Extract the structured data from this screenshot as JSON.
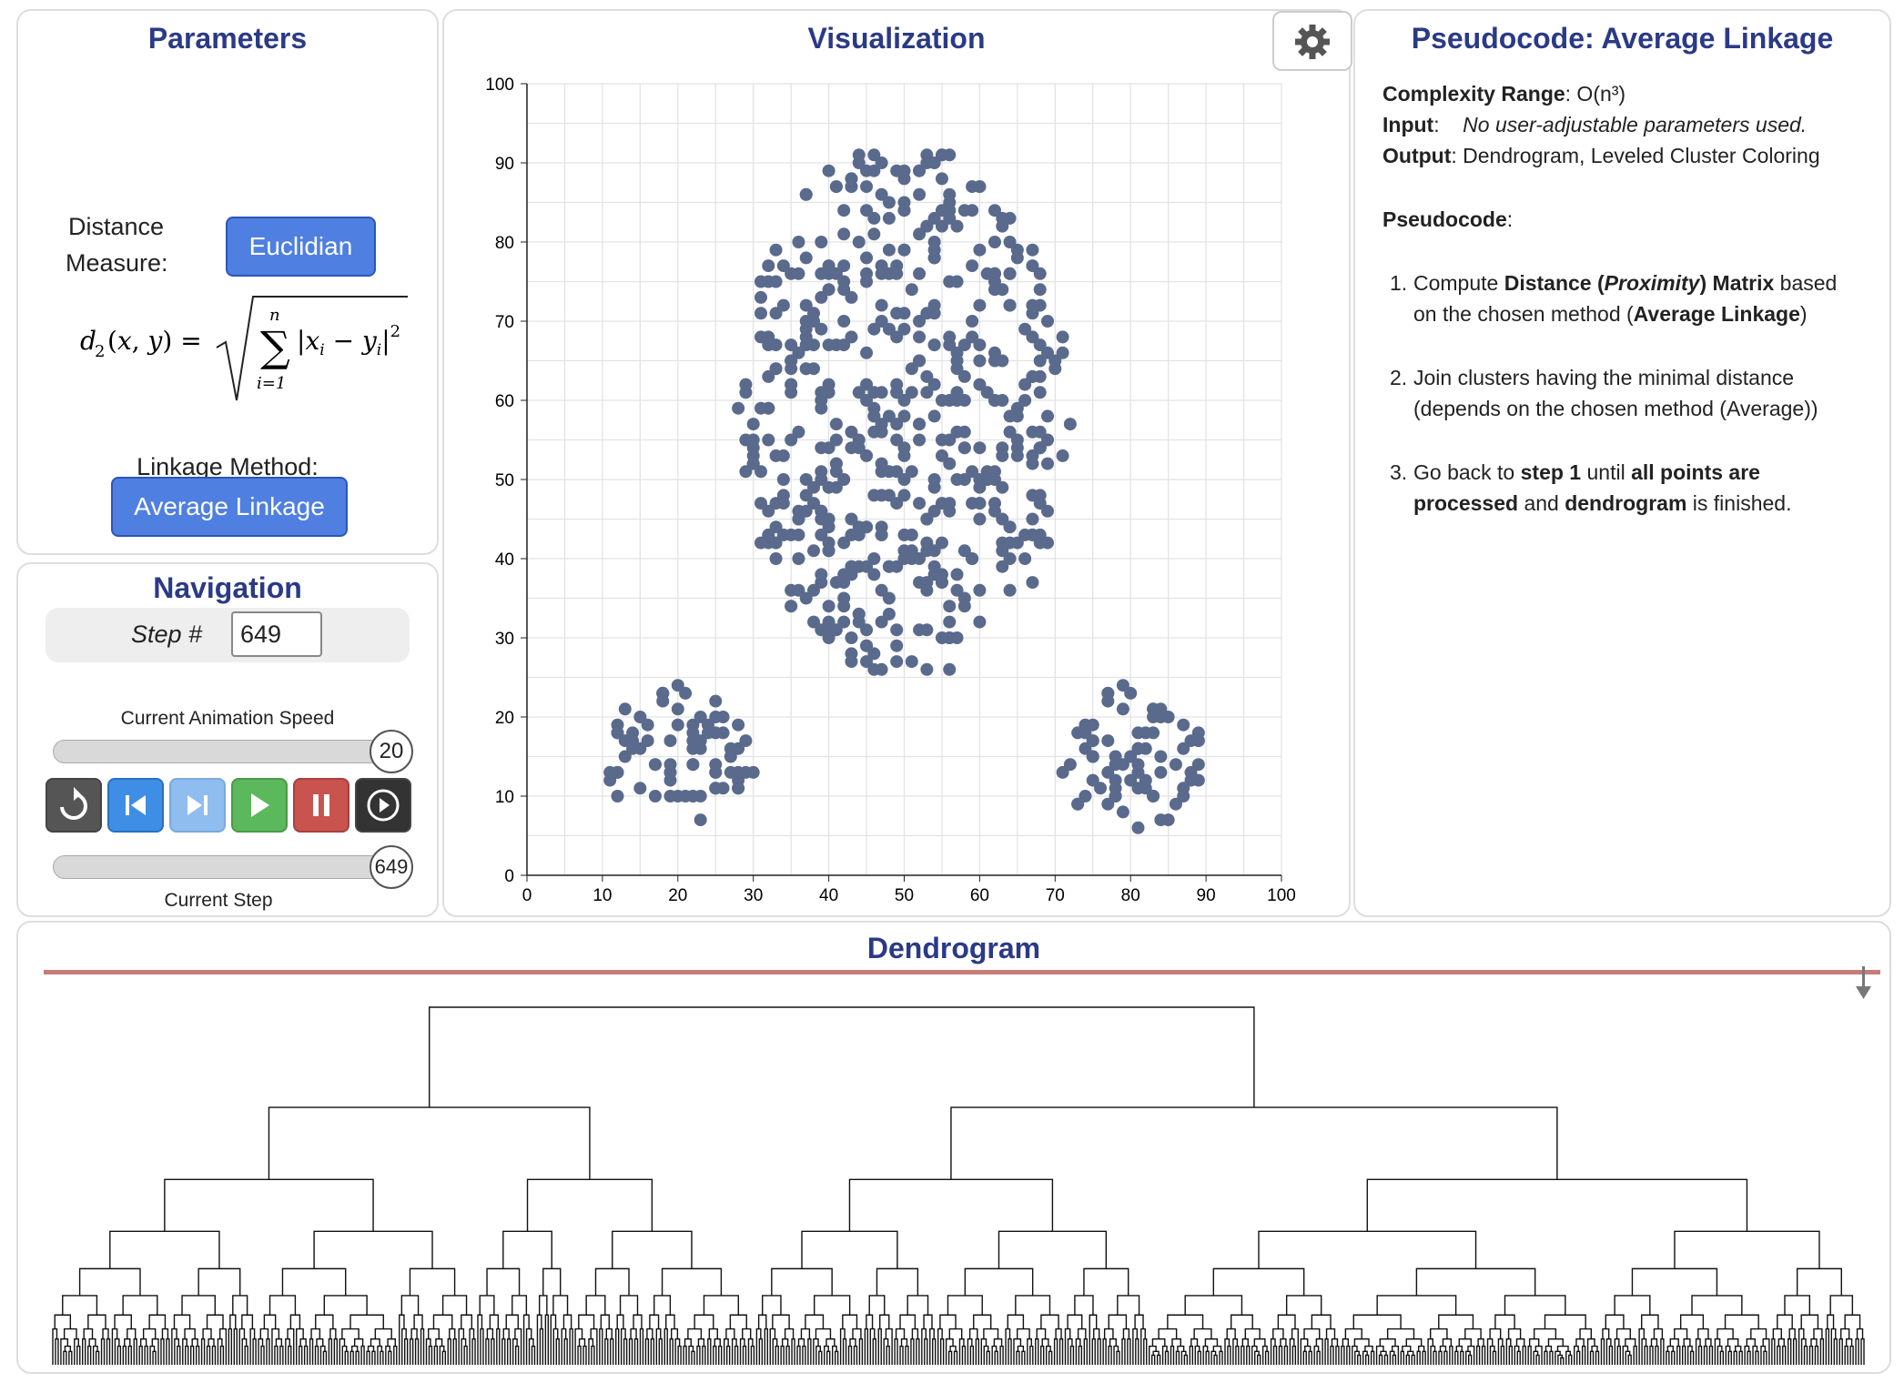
{
  "parameters": {
    "title": "Parameters",
    "distance_label_1": "Distance",
    "distance_label_2": "Measure:",
    "distance_button": "Euclidian",
    "linkage_label": "Linkage Method:",
    "linkage_button": "Average Linkage"
  },
  "navigation": {
    "title": "Navigation",
    "step_label": "Step #",
    "step_value": "649",
    "speed_label": "Current Animation Speed",
    "speed_value": "20",
    "speed_fraction": 0.97,
    "step_slider_value": "649",
    "step_fraction": 1.0,
    "step_slider_label": "Current Step",
    "controls": [
      {
        "icon": "restart-icon",
        "color": "#555555"
      },
      {
        "icon": "step-back-icon",
        "color": "#3f8ee6"
      },
      {
        "icon": "step-forward-icon",
        "color": "#8fbdf0"
      },
      {
        "icon": "play-icon",
        "color": "#5cb85c"
      },
      {
        "icon": "pause-icon",
        "color": "#c9534f"
      },
      {
        "icon": "auto-play-icon",
        "color": "#333333"
      }
    ]
  },
  "visualization": {
    "title": "Visualization",
    "settings_icon": "gear-icon"
  },
  "pseudocode": {
    "title": "Pseudocode: Average Linkage",
    "complexity_label": "Complexity Range",
    "complexity_value": ": O(n³)",
    "input_label": "Input",
    "input_value": "No user-adjustable parameters used.",
    "output_label": "Output",
    "output_value": ": Dendrogram, Leveled Cluster Coloring",
    "pseudocode_label": "Pseudocode",
    "step1_a": "Compute ",
    "step1_b": "Distance (",
    "step1_c": "Proximity",
    "step1_d": ") Matrix",
    "step1_e": " based",
    "step1_f": "on the chosen method (",
    "step1_g": "Average Linkage",
    "step1_h": ")",
    "step2_a": "Join clusters having the minimal distance",
    "step2_b": "(depends on the chosen method (Average))",
    "step3_a": "Go back to ",
    "step3_b": "step 1",
    "step3_c": " until ",
    "step3_d": "all points are",
    "step3_e": "processed",
    "step3_f": " and ",
    "step3_g": "dendrogram",
    "step3_h": " is finished."
  },
  "dendrogram": {
    "title": "Dendrogram",
    "cut_line_color": "#c97b78"
  },
  "colors": {
    "title_blue": "#2b3a86",
    "point": "#5a6a8c",
    "grid": "#e3e3e3"
  },
  "chart_data": {
    "type": "scatter",
    "xlim": [
      0,
      100
    ],
    "ylim": [
      0,
      100
    ],
    "x_ticks": [
      "0",
      "10",
      "20",
      "30",
      "40",
      "50",
      "60",
      "70",
      "80",
      "90",
      "100"
    ],
    "y_ticks": [
      "0",
      "10",
      "20",
      "30",
      "40",
      "50",
      "60",
      "70",
      "80",
      "90",
      "100"
    ],
    "grid": true,
    "clusters": [
      {
        "shape": "disc",
        "center": [
          50,
          59
        ],
        "radius_x": 22,
        "radius_y": 34,
        "count": 520
      },
      {
        "shape": "disc",
        "center": [
          20,
          15
        ],
        "radius_x": 10,
        "radius_y": 9,
        "count": 75
      },
      {
        "shape": "disc",
        "center": [
          80,
          15
        ],
        "radius_x": 10,
        "radius_y": 9,
        "count": 75
      }
    ]
  }
}
